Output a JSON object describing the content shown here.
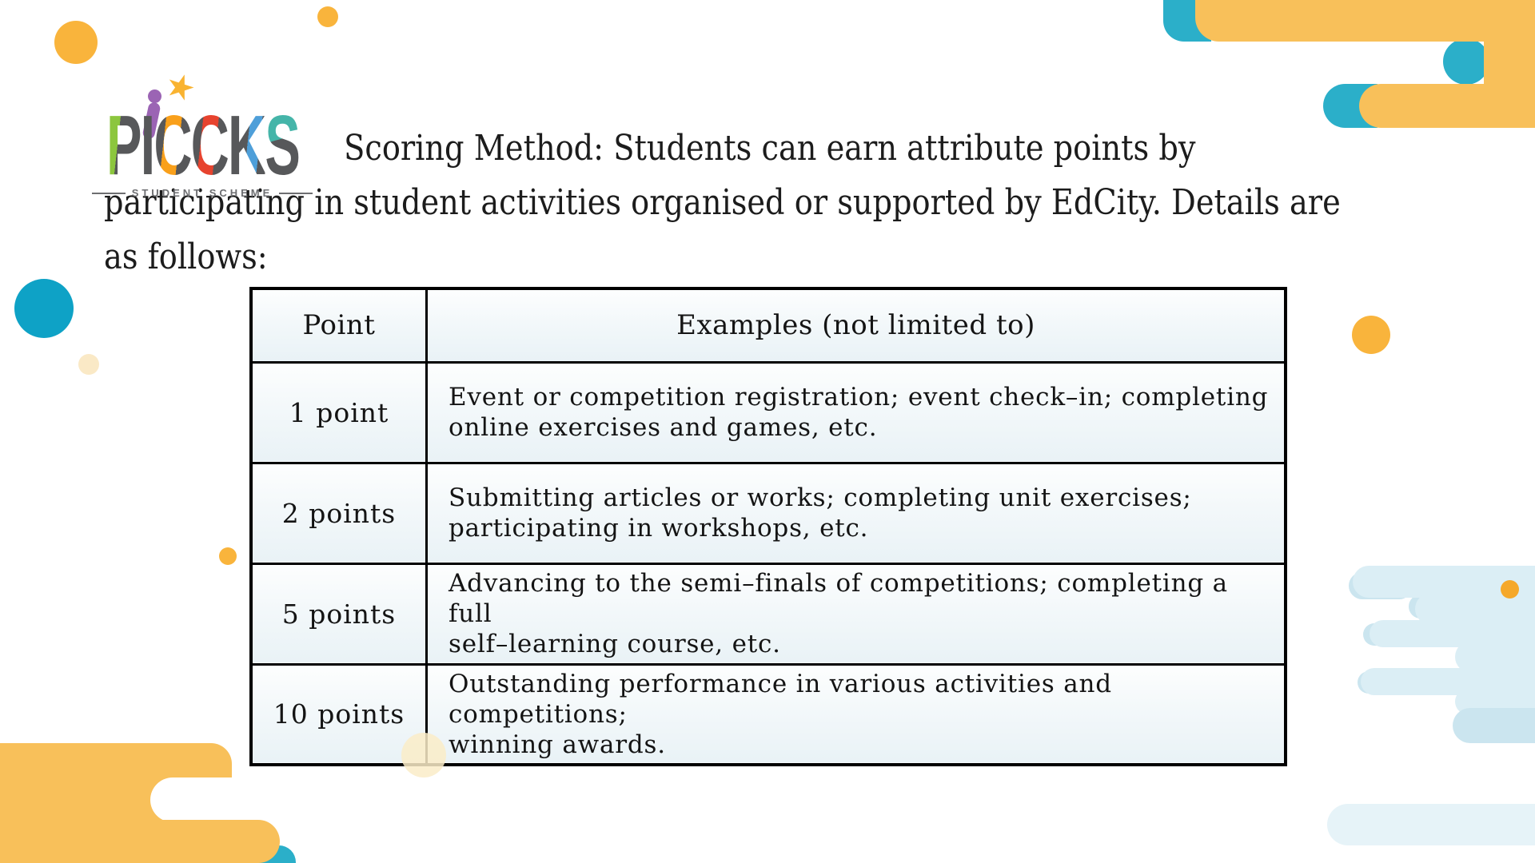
{
  "logo": {
    "word": "PICCKS",
    "letters": [
      "P",
      "I",
      "C",
      "C",
      "K",
      "S"
    ],
    "subtitle": "STUDENT SCHEME",
    "star_icon": "★"
  },
  "heading": {
    "lines": [
      "Scoring Method: Students can earn attribute points by",
      "participating in student activities organised or supported by EdCity. Details are",
      "as follows:"
    ]
  },
  "table": {
    "headers": [
      "Point",
      "Examples (not limited to)"
    ],
    "rows": [
      {
        "point": "1 point",
        "examples": "Event or competition registration; event check–in; completing\nonline exercises and games, etc."
      },
      {
        "point": "2 points",
        "examples": "Submitting articles or works; completing unit exercises;\nparticipating in workshops, etc."
      },
      {
        "point": "5 points",
        "examples": "Advancing to the semi–finals of competitions; completing a full\nself–learning course, etc."
      },
      {
        "point": "10 points",
        "examples": "Outstanding performance in various activities and competitions;\nwinning awards."
      }
    ]
  },
  "colors": {
    "cloud_yellow": "#F8C05A",
    "circle_yellow": "#F9B43C",
    "teal": "#2BAFC9",
    "teal_circle": "#0EA2C6",
    "light_blue_cloud": "#DBEEF5",
    "light_blue_accent": "#CBE5EF",
    "pale_bar": "#E6F3F8",
    "cream": "#FAE9C6",
    "logo_gray": "#57585A",
    "logo_green": "#8CC63E",
    "logo_orange": "#F9A01B",
    "logo_red": "#E7432E",
    "logo_blue": "#4E9FD9",
    "logo_teal": "#45B5A9",
    "logo_purple": "#9B64B4",
    "star_yellow": "#F9B331",
    "text": "#1C1C1C"
  }
}
